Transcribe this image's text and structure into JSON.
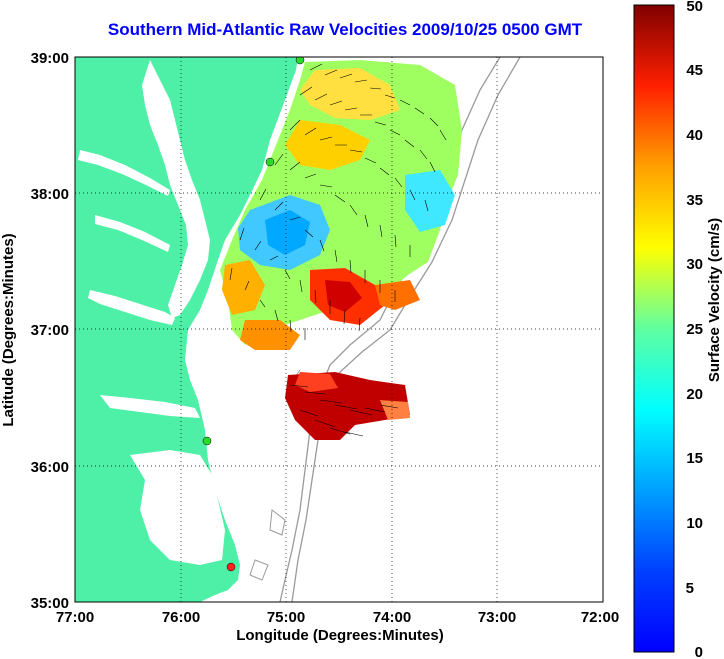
{
  "title": "Southern Mid-Atlantic Raw Velocities 2009/10/25 0500 GMT",
  "xlabel": "Longitude (Degrees:Minutes)",
  "ylabel": "Latitude (Degrees:Minutes)",
  "colorbar_label": "Surface Velocity (cm/s)",
  "x_ticks": [
    "77:00",
    "76:00",
    "75:00",
    "74:00",
    "73:00",
    "72:00"
  ],
  "y_ticks": [
    "39:00",
    "38:00",
    "37:00",
    "36:00",
    "35:00"
  ],
  "colorbar_ticks": [
    "0",
    "5",
    "10",
    "15",
    "20",
    "25",
    "30",
    "35",
    "40",
    "45",
    "50"
  ],
  "colors": {
    "land": "#4ef0a8",
    "ocean": "#ffffff",
    "bathymetry": "#9a9a9a",
    "station": "#2bd92b",
    "station_alert": "#ff2020"
  },
  "chart_data": {
    "type": "heatmap",
    "title": "Southern Mid-Atlantic Raw Velocities 2009/10/25 0500 GMT",
    "xlabel": "Longitude (Degrees:Minutes)",
    "ylabel": "Latitude (Degrees:Minutes)",
    "xlim": [
      -77,
      -72
    ],
    "ylim": [
      35,
      39
    ],
    "clim": [
      0,
      50
    ],
    "colormap": "jet",
    "grid": true,
    "units": "cm/s"
  }
}
